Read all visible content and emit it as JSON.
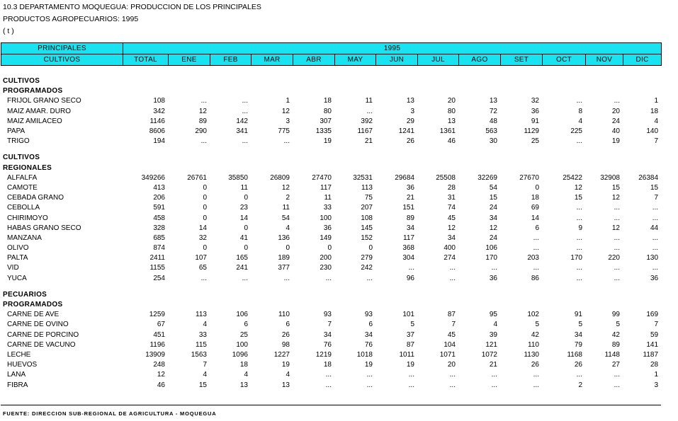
{
  "title": {
    "line1": "10.3  DEPARTAMENTO MOQUEGUA: PRODUCCION DE LOS PRINCIPALES",
    "line2": "PRODUCTOS AGROPECUARIOS: 1995",
    "line3": "( t )"
  },
  "header": {
    "principales": "PRINCIPALES",
    "cultivos": "CULTIVOS",
    "year": "1995",
    "columns": [
      "TOTAL",
      "ENE",
      "FEB",
      "MAR",
      "ABR",
      "MAY",
      "JUN",
      "JUL",
      "AGO",
      "SET",
      "OCT",
      "NOV",
      "DIC"
    ]
  },
  "sections": [
    {
      "line1": "CULTIVOS",
      "line2": "PROGRAMADOS",
      "rows": [
        {
          "name": "FRIJOL GRANO SECO",
          "values": [
            "108",
            "...",
            "...",
            "1",
            "18",
            "11",
            "13",
            "20",
            "13",
            "32",
            "...",
            "...",
            "1"
          ]
        },
        {
          "name": "MAIZ AMAR. DURO",
          "values": [
            "342",
            "12",
            "...",
            "12",
            "80",
            "...",
            "3",
            "80",
            "72",
            "36",
            "8",
            "20",
            "18"
          ]
        },
        {
          "name": "MAIZ AMILACEO",
          "values": [
            "1146",
            "89",
            "142",
            "3",
            "307",
            "392",
            "29",
            "13",
            "48",
            "91",
            "4",
            "24",
            "4"
          ]
        },
        {
          "name": "PAPA",
          "values": [
            "8606",
            "290",
            "341",
            "775",
            "1335",
            "1167",
            "1241",
            "1361",
            "563",
            "1129",
            "225",
            "40",
            "140"
          ]
        },
        {
          "name": "TRIGO",
          "values": [
            "194",
            "...",
            "...",
            "...",
            "19",
            "21",
            "26",
            "46",
            "30",
            "25",
            "...",
            "19",
            "7"
          ]
        }
      ]
    },
    {
      "line1": "CULTIVOS",
      "line2": "REGIONALES",
      "rows": [
        {
          "name": "ALFALFA",
          "values": [
            "349266",
            "26761",
            "35850",
            "26809",
            "27470",
            "32531",
            "29684",
            "25508",
            "32269",
            "27670",
            "25422",
            "32908",
            "26384"
          ]
        },
        {
          "name": "CAMOTE",
          "values": [
            "413",
            "0",
            "11",
            "12",
            "117",
            "113",
            "36",
            "28",
            "54",
            "0",
            "12",
            "15",
            "15"
          ]
        },
        {
          "name": "CEBADA GRANO",
          "values": [
            "206",
            "0",
            "0",
            "2",
            "11",
            "75",
            "21",
            "31",
            "15",
            "18",
            "15",
            "12",
            "7"
          ]
        },
        {
          "name": "CEBOLLA",
          "values": [
            "591",
            "0",
            "23",
            "11",
            "33",
            "207",
            "151",
            "74",
            "24",
            "69",
            "...",
            "...",
            "..."
          ]
        },
        {
          "name": "CHIRIMOYO",
          "values": [
            "458",
            "0",
            "14",
            "54",
            "100",
            "108",
            "89",
            "45",
            "34",
            "14",
            "...",
            "...",
            "..."
          ]
        },
        {
          "name": "HABAS GRANO SECO",
          "values": [
            "328",
            "14",
            "0",
            "4",
            "36",
            "145",
            "34",
            "12",
            "12",
            "6",
            "9",
            "12",
            "44"
          ]
        },
        {
          "name": "MANZANA",
          "values": [
            "685",
            "32",
            "41",
            "136",
            "149",
            "152",
            "117",
            "34",
            "24",
            "...",
            "...",
            "...",
            "..."
          ]
        },
        {
          "name": "OLIVO",
          "values": [
            "874",
            "0",
            "0",
            "0",
            "0",
            "0",
            "368",
            "400",
            "106",
            "...",
            "...",
            "...",
            "..."
          ]
        },
        {
          "name": "PALTA",
          "values": [
            "2411",
            "107",
            "165",
            "189",
            "200",
            "279",
            "304",
            "274",
            "170",
            "203",
            "170",
            "220",
            "130"
          ]
        },
        {
          "name": "VID",
          "values": [
            "1155",
            "65",
            "241",
            "377",
            "230",
            "242",
            "...",
            "...",
            "...",
            "...",
            "...",
            "...",
            "..."
          ]
        },
        {
          "name": "YUCA",
          "values": [
            "254",
            "...",
            "...",
            "...",
            "...",
            "...",
            "96",
            "...",
            "36",
            "86",
            "...",
            "...",
            "36"
          ]
        }
      ]
    },
    {
      "line1": "PECUARIOS",
      "line2": "PROGRAMADOS",
      "rows": [
        {
          "name": "CARNE DE AVE",
          "values": [
            "1259",
            "113",
            "106",
            "110",
            "93",
            "93",
            "101",
            "87",
            "95",
            "102",
            "91",
            "99",
            "169"
          ]
        },
        {
          "name": "CARNE DE OVINO",
          "values": [
            "67",
            "4",
            "6",
            "6",
            "7",
            "6",
            "5",
            "7",
            "4",
            "5",
            "5",
            "5",
            "7"
          ]
        },
        {
          "name": "CARNE DE PORCINO",
          "values": [
            "451",
            "33",
            "25",
            "26",
            "34",
            "34",
            "37",
            "45",
            "39",
            "42",
            "34",
            "42",
            "59"
          ]
        },
        {
          "name": "CARNE DE VACUNO",
          "values": [
            "1196",
            "115",
            "100",
            "98",
            "76",
            "76",
            "87",
            "104",
            "121",
            "110",
            "79",
            "89",
            "141"
          ]
        },
        {
          "name": "LECHE",
          "values": [
            "13909",
            "1563",
            "1096",
            "1227",
            "1219",
            "1018",
            "1011",
            "1071",
            "1072",
            "1130",
            "1168",
            "1148",
            "1187"
          ]
        },
        {
          "name": "HUEVOS",
          "values": [
            "248",
            "7",
            "18",
            "19",
            "18",
            "19",
            "19",
            "20",
            "21",
            "26",
            "26",
            "27",
            "28"
          ]
        },
        {
          "name": "LANA",
          "values": [
            "12",
            "4",
            "4",
            "4",
            "...",
            "...",
            "...",
            "...",
            "...",
            "...",
            "...",
            "...",
            "1"
          ]
        },
        {
          "name": "FIBRA",
          "values": [
            "46",
            "15",
            "13",
            "13",
            "...",
            "...",
            "...",
            "...",
            "...",
            "...",
            "2",
            "...",
            "3"
          ]
        }
      ]
    }
  ],
  "footer": {
    "source": "FUENTE: DIRECCION SUB-REGIONAL DE AGRICULTURA - MOQUEGUA"
  }
}
